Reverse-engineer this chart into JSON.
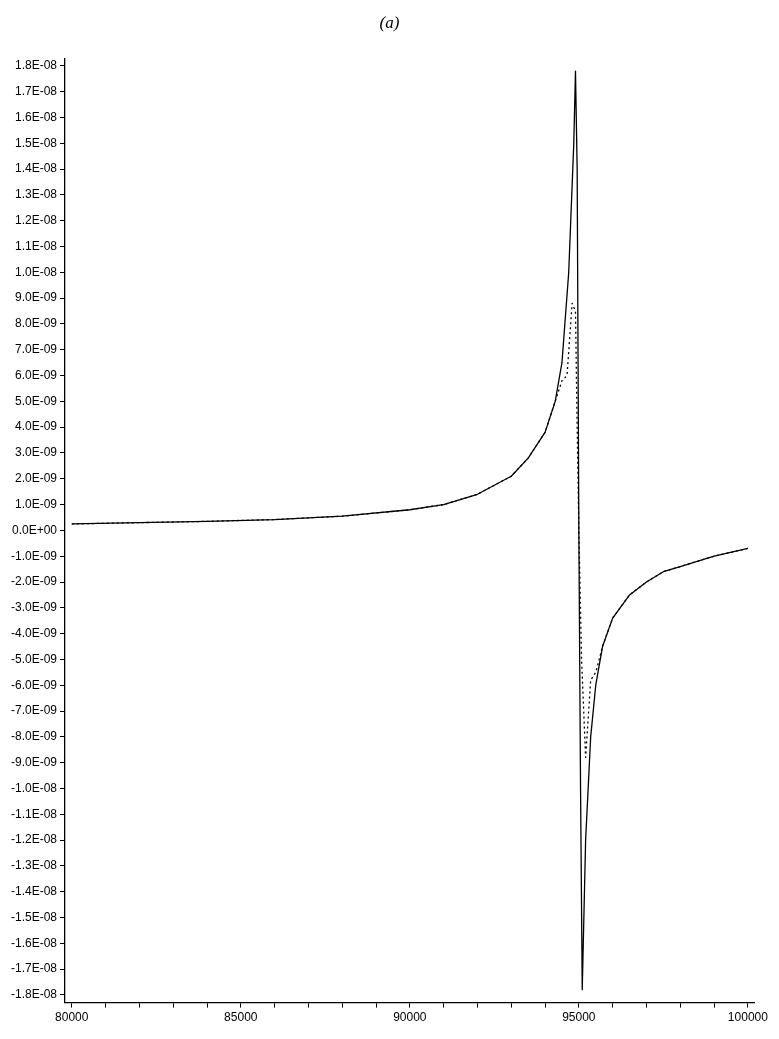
{
  "chart_data": {
    "type": "line",
    "title": "(a)",
    "legend": false,
    "grid": false,
    "marker": "none",
    "xlim": [
      79800,
      100200
    ],
    "ylim": [
      -1.83e-08,
      1.83e-08
    ],
    "xticks": [
      80000,
      {
        "value": 81000,
        "label": null
      },
      {
        "value": 82000,
        "label": null
      },
      {
        "value": 83000,
        "label": null
      },
      {
        "value": 84000,
        "label": null
      },
      85000,
      {
        "value": 86000,
        "label": null
      },
      {
        "value": 87000,
        "label": null
      },
      {
        "value": 88000,
        "label": null
      },
      {
        "value": 89000,
        "label": null
      },
      90000,
      {
        "value": 91000,
        "label": null
      },
      {
        "value": 92000,
        "label": null
      },
      {
        "value": 93000,
        "label": null
      },
      {
        "value": 94000,
        "label": null
      },
      95000,
      {
        "value": 96000,
        "label": null
      },
      {
        "value": 97000,
        "label": null
      },
      {
        "value": 98000,
        "label": null
      },
      {
        "value": 99000,
        "label": null
      },
      100000
    ],
    "yticks": [
      {
        "value": 1.8e-08,
        "label": "1.8E-08"
      },
      {
        "value": 1.7e-08,
        "label": "1.7E-08"
      },
      {
        "value": 1.6e-08,
        "label": "1.6E-08"
      },
      {
        "value": 1.5e-08,
        "label": "1.5E-08"
      },
      {
        "value": 1.4e-08,
        "label": "1.4E-08"
      },
      {
        "value": 1.3e-08,
        "label": "1.3E-08"
      },
      {
        "value": 1.2e-08,
        "label": "1.2E-08"
      },
      {
        "value": 1.1e-08,
        "label": "1.1E-08"
      },
      {
        "value": 1e-08,
        "label": "1.0E-08"
      },
      {
        "value": 9e-09,
        "label": "9.0E-09"
      },
      {
        "value": 8e-09,
        "label": "8.0E-09"
      },
      {
        "value": 7e-09,
        "label": "7.0E-09"
      },
      {
        "value": 6e-09,
        "label": "6.0E-09"
      },
      {
        "value": 5e-09,
        "label": "5.0E-09"
      },
      {
        "value": 4e-09,
        "label": "4.0E-09"
      },
      {
        "value": 3e-09,
        "label": "3.0E-09"
      },
      {
        "value": 2e-09,
        "label": "2.0E-09"
      },
      {
        "value": 1e-09,
        "label": "1.0E-09"
      },
      {
        "value": 0,
        "label": "0.0E+00"
      },
      {
        "value": -1e-09,
        "label": "-1.0E-09"
      },
      {
        "value": -2e-09,
        "label": "-2.0E-09"
      },
      {
        "value": -3e-09,
        "label": "-3.0E-09"
      },
      {
        "value": -4e-09,
        "label": "-4.0E-09"
      },
      {
        "value": -5e-09,
        "label": "-5.0E-09"
      },
      {
        "value": -6e-09,
        "label": "-6.0E-09"
      },
      {
        "value": -7e-09,
        "label": "-7.0E-09"
      },
      {
        "value": -8e-09,
        "label": "-8.0E-09"
      },
      {
        "value": -9e-09,
        "label": "-9.0E-09"
      },
      {
        "value": -1e-08,
        "label": "-1.0E-08"
      },
      {
        "value": -1.1e-08,
        "label": "-1.1E-08"
      },
      {
        "value": -1.2e-08,
        "label": "-1.2E-08"
      },
      {
        "value": -1.3e-08,
        "label": "-1.3E-08"
      },
      {
        "value": -1.4e-08,
        "label": "-1.4E-08"
      },
      {
        "value": -1.5e-08,
        "label": "-1.5E-08"
      },
      {
        "value": -1.6e-08,
        "label": "-1.6E-08"
      },
      {
        "value": -1.7e-08,
        "label": "-1.7E-08"
      },
      {
        "value": -1.8e-08,
        "label": "-1.8E-08"
      }
    ],
    "series": [
      {
        "color": "#000000",
        "line_style": "solid",
        "x": [
          80000,
          82000,
          84000,
          86000,
          88000,
          90000,
          91000,
          92000,
          93000,
          93500,
          94000,
          94300,
          94500,
          94700,
          94850,
          94900,
          94950,
          95000,
          95050,
          95100,
          95200,
          95350,
          95500,
          95700,
          96000,
          96500,
          97000,
          97500,
          98000,
          99000,
          100000
        ],
        "values": [
          2.5e-10,
          3e-10,
          3.5e-10,
          4.2e-10,
          5.5e-10,
          8e-10,
          1e-09,
          1.4e-09,
          2.1e-09,
          2.8e-09,
          3.8e-09,
          5e-09,
          6.5e-09,
          1e-08,
          1.5e-08,
          1.78e-08,
          1.4e-08,
          0,
          -1e-08,
          -1.78e-08,
          -1.2e-08,
          -8e-09,
          -6e-09,
          -4.5e-09,
          -3.4e-09,
          -2.5e-09,
          -2e-09,
          -1.6e-09,
          -1.4e-09,
          -1e-09,
          -7e-10
        ]
      },
      {
        "color": "#000000",
        "line_style": "dotted",
        "x": [
          80000,
          82000,
          84000,
          86000,
          88000,
          90000,
          91000,
          92000,
          93000,
          93500,
          94000,
          94300,
          94500,
          94650,
          94800,
          94900,
          94950,
          95000,
          95080,
          95200,
          95350,
          95500,
          95700,
          96000,
          96500,
          97000,
          97500,
          98000,
          99000,
          100000
        ],
        "values": [
          2.5e-10,
          3e-10,
          3.5e-10,
          4.2e-10,
          5.5e-10,
          8e-10,
          1e-09,
          1.4e-09,
          2.1e-09,
          2.8e-09,
          3.8e-09,
          5e-09,
          5.8e-09,
          6e-09,
          8.8e-09,
          8.5e-09,
          4e-09,
          0,
          -5e-09,
          -8.8e-09,
          -5.8e-09,
          -5.5e-09,
          -4.5e-09,
          -3.4e-09,
          -2.5e-09,
          -2e-09,
          -1.6e-09,
          -1.4e-09,
          -1e-09,
          -7e-10
        ]
      }
    ]
  }
}
